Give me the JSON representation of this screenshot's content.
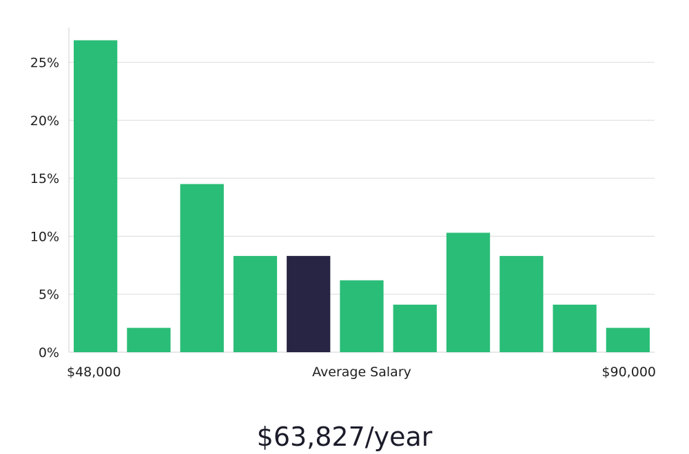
{
  "chart_data": {
    "type": "bar",
    "categories": [
      "$48,000",
      "",
      "",
      "",
      "Average Salary",
      "",
      "",
      "",
      "",
      "",
      "$90,000"
    ],
    "values": [
      26.9,
      2.1,
      14.5,
      8.3,
      8.3,
      6.2,
      4.1,
      10.3,
      8.3,
      4.1,
      2.1
    ],
    "highlight_index": 4,
    "ylim": [
      0,
      28
    ],
    "yticks": [
      0,
      5,
      10,
      15,
      20,
      25
    ],
    "ytick_labels": [
      "0%",
      "5%",
      "10%",
      "15%",
      "20%",
      "25%"
    ],
    "x_min_label": "$48,000",
    "x_mid_label": "Average Salary",
    "x_max_label": "$90,000",
    "grid": true,
    "bar_color": "#2abd77",
    "highlight_color": "#282544",
    "grid_color": "#d9d9dc",
    "axis_color": "#cfcfd4"
  },
  "salary_summary": {
    "value": "$63,827/year"
  }
}
